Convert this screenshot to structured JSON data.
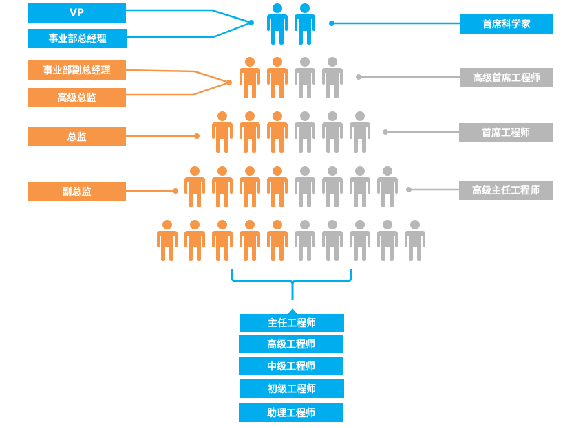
{
  "colors": {
    "blue": "#00aeef",
    "orange": "#f79646",
    "gray": "#b7b7b7"
  },
  "left_labels": [
    "VP",
    "事业部总经理",
    "事业部副总经理",
    "高级总监",
    "总监",
    "副总监"
  ],
  "right_labels": [
    "首席科学家",
    "高级首席工程师",
    "首席工程师",
    "高级主任工程师"
  ],
  "bottom_labels": [
    "主任工程师",
    "高级工程师",
    "中级工程师",
    "初级工程师",
    "助理工程师"
  ],
  "rows": [
    {
      "total": 2,
      "highlighted": 2,
      "color": "blue"
    },
    {
      "total": 4,
      "highlighted": 2,
      "color": "orange"
    },
    {
      "total": 6,
      "highlighted": 3,
      "color": "orange"
    },
    {
      "total": 8,
      "highlighted": 4,
      "color": "orange"
    },
    {
      "total": 10,
      "highlighted": 5,
      "color": "orange"
    }
  ]
}
